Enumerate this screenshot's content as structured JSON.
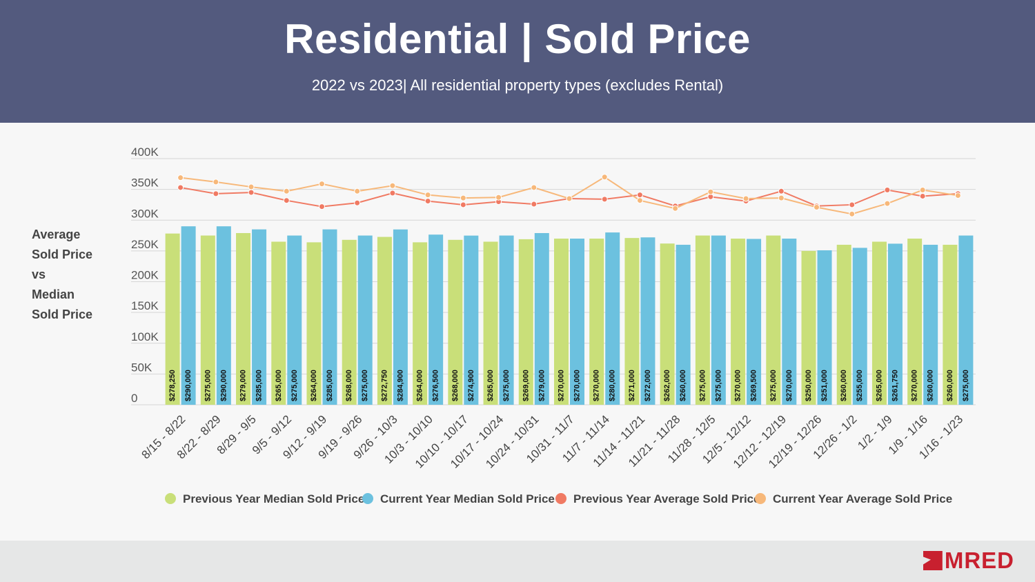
{
  "header": {
    "title": "Residential | Sold Price",
    "subtitle": "2022 vs 2023| All residential property types (excludes Rental)"
  },
  "side_label": [
    "Average",
    "Sold Price",
    "vs",
    "Median",
    "Sold Price"
  ],
  "brand": {
    "logo_text": "MRED",
    "logo_color": "#c8202f"
  },
  "colors": {
    "header_bg": "#535a7e",
    "prev_median": "#c9df79",
    "curr_median": "#6cc1df",
    "prev_avg": "#f07a63",
    "curr_avg": "#f7b87a"
  },
  "chart_data": {
    "type": "bar",
    "title": "",
    "xlabel": "",
    "ylabel": "",
    "ylim": [
      0,
      400000
    ],
    "yticks": [
      "0",
      "50K",
      "100K",
      "150K",
      "200K",
      "250K",
      "300K",
      "350K",
      "400K"
    ],
    "grid": true,
    "legend_position": "bottom",
    "categories": [
      "8/15 - 8/22",
      "8/22 - 8/29",
      "8/29 - 9/5",
      "9/5 - 9/12",
      "9/12 - 9/19",
      "9/19 - 9/26",
      "9/26 - 10/3",
      "10/3 - 10/10",
      "10/10 - 10/17",
      "10/17 - 10/24",
      "10/24 - 10/31",
      "10/31 - 11/7",
      "11/7 - 11/14",
      "11/14 - 11/21",
      "11/21 - 11/28",
      "11/28 - 12/5",
      "12/5 - 12/12",
      "12/12 - 12/19",
      "12/19 - 12/26",
      "12/26 - 1/2",
      "1/2 - 1/9",
      "1/9 - 1/16",
      "1/16 - 1/23"
    ],
    "series": [
      {
        "name": "Previous Year Median Sold Price",
        "type": "bar",
        "color": "#c9df79",
        "values": [
          278250,
          275000,
          279000,
          265000,
          264000,
          268000,
          272750,
          264000,
          268000,
          265000,
          269000,
          270000,
          270000,
          271000,
          262000,
          275000,
          270000,
          275000,
          250000,
          260000,
          265000,
          270000,
          260000
        ],
        "labels": [
          "$278,250",
          "$275,000",
          "$279,000",
          "$265,000",
          "$264,000",
          "$268,000",
          "$272,750",
          "$264,000",
          "$268,000",
          "$265,000",
          "$269,000",
          "$270,000",
          "$270,000",
          "$271,000",
          "$262,000",
          "$275,000",
          "$270,000",
          "$275,000",
          "$250,000",
          "$260,000",
          "$265,000",
          "$270,000",
          "$260,000"
        ]
      },
      {
        "name": "Current Year Median Sold Price",
        "type": "bar",
        "color": "#6cc1df",
        "values": [
          290000,
          290000,
          285000,
          275000,
          285000,
          275000,
          284900,
          276500,
          274900,
          275000,
          279000,
          270000,
          280000,
          272000,
          260000,
          275000,
          269500,
          270000,
          251000,
          255000,
          261750,
          260000,
          275000
        ],
        "labels": [
          "$290,000",
          "$290,000",
          "$285,000",
          "$275,000",
          "$285,000",
          "$275,000",
          "$284,900",
          "$276,500",
          "$274,900",
          "$275,000",
          "$279,000",
          "$270,000",
          "$280,000",
          "$272,000",
          "$260,000",
          "$275,000",
          "$269,500",
          "$270,000",
          "$251,000",
          "$255,000",
          "$261,750",
          "$260,000",
          "$275,000"
        ]
      },
      {
        "name": "Previous Year Average Sold Price",
        "type": "line",
        "color": "#f07a63",
        "values": [
          353000,
          343000,
          345000,
          332000,
          322000,
          328000,
          344000,
          331000,
          325000,
          330000,
          326000,
          335000,
          334000,
          341000,
          323000,
          338000,
          331000,
          347000,
          323000,
          325000,
          349000,
          339000,
          343000
        ]
      },
      {
        "name": "Current Year Average Sold Price",
        "type": "line",
        "color": "#f7b87a",
        "values": [
          369000,
          362000,
          354000,
          347000,
          359000,
          347000,
          356000,
          341000,
          336000,
          337000,
          353000,
          335000,
          370000,
          332000,
          319000,
          346000,
          335000,
          336000,
          321000,
          310000,
          327000,
          349000,
          340000
        ]
      }
    ]
  }
}
